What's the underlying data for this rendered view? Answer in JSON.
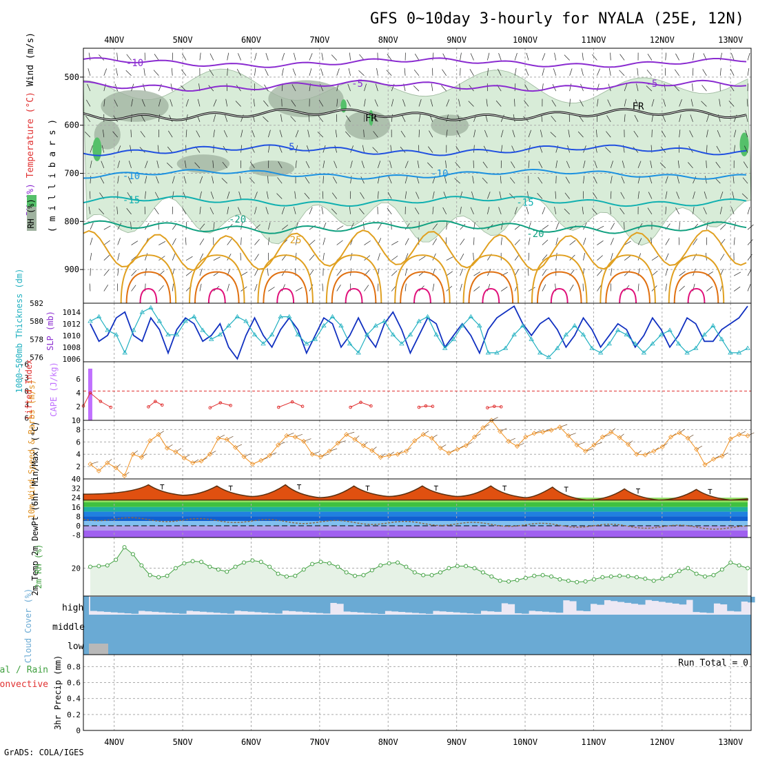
{
  "title": "GFS 0~10day 3-hourly for NYALA (25E, 12N)",
  "credit": "GrADS: COLA/IGES",
  "colors": {
    "rh_green": "#d8ecd8",
    "rh_grey": "#9fb29f",
    "rh_bright": "#55c06a",
    "temp_purple": "#8a2bd0",
    "temp_blue": "#2050e0",
    "temp_lightblue": "#1a90e0",
    "temp_teal": "#10b0b0",
    "temp_green": "#10a080",
    "temp_orange": "#e0a020",
    "temp_darkorange": "#e07010",
    "temp_red": "#e0107a",
    "slp": "#1030c0",
    "thickness": "#20b0c0",
    "cape": "#c070ff",
    "lifted": "#e03030",
    "wind": "#f09020",
    "rh2m": "#40a040",
    "cloud": "#6aaad4",
    "precip_conv": "#e03030"
  },
  "chart_data": [
    {
      "type": "contour",
      "panel": "upper-air",
      "ylabel_parts": [
        "RH (%)",
        "Temperature (°C)",
        "Wind (m/s)"
      ],
      "ylabel2": "( m i l l i b a r s )",
      "rh_legend": "RH (%)",
      "y_unit": "mb",
      "ylim": [
        970,
        440
      ],
      "yticks": [
        "500",
        "600",
        "700",
        "800",
        "900"
      ],
      "x_days": [
        "4NOV",
        "5NOV",
        "6NOV",
        "7NOV",
        "8NOV",
        "9NOV",
        "10NOV",
        "11NOV",
        "12NOV",
        "13NOV"
      ],
      "x_start_day": 3.55,
      "x_end_day": 13.3,
      "contour_labels": [
        {
          "text": "-10",
          "day": 4.3,
          "p": 470,
          "color": "temp_purple"
        },
        {
          "text": "-5",
          "day": 7.55,
          "p": 513,
          "color": "temp_purple"
        },
        {
          "text": "-5",
          "day": 11.85,
          "p": 513,
          "color": "temp_purple"
        },
        {
          "text": "FR",
          "day": 7.75,
          "p": 585,
          "color": "#000"
        },
        {
          "text": "FR",
          "day": 11.65,
          "p": 560,
          "color": "#000"
        },
        {
          "text": "-5",
          "day": 6.55,
          "p": 645,
          "color": "temp_blue"
        },
        {
          "text": "-10",
          "day": 4.25,
          "p": 705,
          "color": "temp_lightblue"
        },
        {
          "text": "-10",
          "day": 8.75,
          "p": 700,
          "color": "temp_lightblue"
        },
        {
          "text": "-15",
          "day": 4.25,
          "p": 755,
          "color": "temp_teal"
        },
        {
          "text": "-15",
          "day": 10.0,
          "p": 760,
          "color": "temp_teal"
        },
        {
          "text": "-20",
          "day": 5.8,
          "p": 795,
          "color": "temp_green"
        },
        {
          "text": "-20",
          "day": 10.15,
          "p": 825,
          "color": "temp_green"
        },
        {
          "text": "25",
          "day": 6.65,
          "p": 838,
          "color": "temp_orange"
        }
      ],
      "isotherms_p": [
        {
          "label": "-10C",
          "p": 470,
          "amp": 8,
          "color": "temp_purple"
        },
        {
          "label": "-5C",
          "p": 518,
          "amp": 10,
          "color": "temp_purple"
        },
        {
          "label": "FR",
          "p": 578,
          "amp": 12,
          "color": "#000"
        },
        {
          "label": "-5",
          "p": 652,
          "amp": 10,
          "color": "temp_blue"
        },
        {
          "label": "-10",
          "p": 702,
          "amp": 8,
          "color": "temp_lightblue"
        },
        {
          "label": "-15",
          "p": 758,
          "amp": 10,
          "color": "temp_teal"
        },
        {
          "label": "-20",
          "p": 812,
          "amp": 14,
          "color": "temp_green"
        },
        {
          "label": "25",
          "p": 860,
          "amp": 30,
          "color": "temp_orange"
        }
      ]
    },
    {
      "type": "line",
      "panel": "slp-thickness",
      "ylabel_left": "1000~500mb Thickness (dm)",
      "ylabel_right": "SLP (mb)",
      "left_ticks": [
        "576",
        "578",
        "580",
        "582"
      ],
      "left_range": [
        575.5,
        582
      ],
      "right_ticks": [
        "1006",
        "1008",
        "1010",
        "1012",
        "1014"
      ],
      "right_range": [
        1005.5,
        1015.5
      ],
      "series": [
        {
          "name": "SLP (mb)",
          "axis": "right",
          "values": [
            1012,
            1009,
            1010,
            1013,
            1014,
            1010,
            1009,
            1013,
            1011,
            1007,
            1011,
            1013,
            1012,
            1009,
            1010,
            1012,
            1008,
            1006,
            1010,
            1013,
            1010,
            1008,
            1011,
            1013,
            1011,
            1007,
            1010,
            1013,
            1012,
            1008,
            1010,
            1013,
            1010,
            1008,
            1012,
            1014,
            1011,
            1007,
            1010,
            1013,
            1012,
            1008,
            1010,
            1012,
            1010,
            1007,
            1011,
            1013,
            1014,
            1015,
            1012,
            1010,
            1012,
            1013,
            1011,
            1008,
            1010,
            1013,
            1011,
            1008,
            1010,
            1012,
            1011,
            1008,
            1010,
            1013,
            1011,
            1008,
            1010,
            1013,
            1012,
            1009,
            1009,
            1011,
            1012,
            1013,
            1015
          ]
        },
        {
          "name": "1000~500mb Thickness (dm)",
          "axis": "left",
          "values": [
            580,
            580.5,
            579,
            578.5,
            576.5,
            579,
            581,
            581.5,
            580,
            578.5,
            578.5,
            580,
            580.5,
            579,
            578,
            578.5,
            579.5,
            580.5,
            580,
            578.5,
            577.5,
            578.5,
            580.5,
            580.5,
            578.5,
            577.5,
            578,
            579.5,
            580.5,
            579.5,
            577.5,
            576.5,
            578.5,
            579.5,
            580,
            578.5,
            577.5,
            578.5,
            580,
            580.5,
            578.5,
            577,
            578,
            579.5,
            580.5,
            579.5,
            576.5,
            576.5,
            577,
            578.5,
            579.5,
            578,
            576.5,
            576,
            577,
            578.5,
            579.5,
            578.5,
            577,
            576.5,
            577.5,
            579,
            578.5,
            577.5,
            576.5,
            577.5,
            578.5,
            579,
            577.5,
            576.5,
            577,
            578.5,
            579.5,
            578,
            576.5,
            576.5,
            577
          ]
        }
      ]
    },
    {
      "type": "bar-line",
      "panel": "cape-lifted",
      "ylabel_left": "Lifted Index",
      "ylabel_right": "CAPE (J/kg)",
      "left_ticks": [
        "-6",
        "-3",
        "0",
        "3",
        "6"
      ],
      "right_ticks": [
        "10",
        "2",
        "4",
        "6"
      ],
      "cape_bars": [
        {
          "day": 3.65,
          "value": 7.5
        }
      ],
      "lifted_index": [
        {
          "day": 3.55,
          "value": 3.3
        },
        {
          "day": 3.65,
          "value": 0.4
        },
        {
          "day": 3.8,
          "value": 2.3
        },
        {
          "day": 3.95,
          "value": 3.6
        },
        {
          "day": 4.5,
          "value": 3.5
        },
        {
          "day": 4.6,
          "value": 2.3
        },
        {
          "day": 4.7,
          "value": 3.1
        },
        {
          "day": 5.4,
          "value": 3.7
        },
        {
          "day": 5.55,
          "value": 2.6
        },
        {
          "day": 5.7,
          "value": 3.2
        },
        {
          "day": 6.4,
          "value": 3.6
        },
        {
          "day": 6.6,
          "value": 2.4
        },
        {
          "day": 6.75,
          "value": 3.4
        },
        {
          "day": 7.45,
          "value": 3.6
        },
        {
          "day": 7.6,
          "value": 2.5
        },
        {
          "day": 7.75,
          "value": 3.3
        },
        {
          "day": 8.45,
          "value": 3.6
        },
        {
          "day": 8.55,
          "value": 3.3
        },
        {
          "day": 8.65,
          "value": 3.4
        },
        {
          "day": 9.45,
          "value": 3.7
        },
        {
          "day": 9.55,
          "value": 3.4
        },
        {
          "day": 9.65,
          "value": 3.5
        }
      ]
    },
    {
      "type": "line",
      "panel": "10m-wind",
      "ylabel": "10m Wind Speed & Barbs (m/s)",
      "yticks": [
        "2",
        "4",
        "6",
        "8"
      ],
      "ylim": [
        0,
        9.5
      ],
      "values": [
        2.4,
        1.3,
        2.6,
        1.8,
        0.5,
        4,
        3.5,
        6.2,
        7.2,
        5,
        4.4,
        3.4,
        2.6,
        2.9,
        4,
        6.6,
        6.4,
        5.1,
        3.6,
        2.4,
        3,
        3.8,
        5.5,
        7,
        6.8,
        6.1,
        4,
        3.6,
        4.5,
        5.8,
        7.2,
        6.4,
        5.4,
        4.6,
        3.5,
        3.8,
        4,
        4.5,
        6.2,
        7.2,
        6.6,
        5,
        4.2,
        4.8,
        5.4,
        6.8,
        8.3,
        9.5,
        7.7,
        6.1,
        5.3,
        6.8,
        7.4,
        7.6,
        7.9,
        8.4,
        7,
        5.5,
        4.5,
        5.5,
        6.8,
        7.6,
        6.7,
        5.6,
        4,
        3.9,
        4.5,
        5.2,
        6.8,
        7.5,
        6.6,
        4.8,
        2.3,
        3.2,
        3.7,
        6.5,
        7.2,
        7
      ]
    },
    {
      "type": "area",
      "panel": "2m-temp",
      "ylabel": "2m Temp 2m DewPt (6hr Min/Max) (°C)",
      "yticks": [
        "40",
        "32",
        "24",
        "16",
        "8",
        "0",
        "-8"
      ],
      "ylim": [
        -10,
        40
      ],
      "temp_max": [
        35,
        35.5,
        35,
        36
      ],
      "days_peak": [
        4.5,
        5.5,
        6.5,
        7.5,
        8.5,
        9.5,
        10.4,
        11.45,
        12.5
      ],
      "peak_values": [
        35,
        34,
        35,
        34,
        34,
        34,
        33,
        31.5,
        31
      ],
      "trough_values": [
        27,
        26,
        25,
        24,
        25,
        25,
        24,
        22,
        22,
        22
      ]
    },
    {
      "type": "area",
      "panel": "2m-rh",
      "ylabel": "2m RH (%)",
      "yticks": [
        "20"
      ],
      "ylim": [
        0,
        42
      ],
      "values": [
        21,
        21.5,
        22,
        26,
        35,
        30,
        22,
        15,
        13.5,
        14.5,
        20,
        23.5,
        25,
        24.5,
        21,
        19,
        17.5,
        21,
        24,
        25.5,
        24.5,
        21,
        16,
        14,
        14.5,
        19,
        23,
        24.5,
        23.5,
        21,
        17,
        14.5,
        15,
        18.5,
        22,
        23.5,
        24,
        21,
        17,
        15,
        15,
        17,
        20,
        21.5,
        21.5,
        20,
        17,
        14,
        11,
        10.5,
        11.5,
        13,
        14.5,
        15,
        14,
        12,
        11,
        10,
        10.5,
        12,
        13.5,
        14,
        14.5,
        14.2,
        13.5,
        12.5,
        11,
        12.5,
        14.5,
        18,
        20,
        16,
        14,
        15,
        19,
        24,
        22,
        20
      ]
    },
    {
      "type": "bar",
      "panel": "cloud-cover",
      "ylabel": "Cloud Cover (%)",
      "levels": [
        "high",
        "middle",
        "low"
      ]
    },
    {
      "type": "bar",
      "panel": "precip",
      "ylabel": "3hr Precip (mm)",
      "label_total": "Total / Rain",
      "label_conv": "Convective",
      "run_total": "Run Total = 0",
      "yticks": [
        "0",
        "0.2",
        "0.4",
        "0.6",
        "0.8"
      ],
      "ylim": [
        0,
        0.95
      ],
      "values": []
    }
  ]
}
